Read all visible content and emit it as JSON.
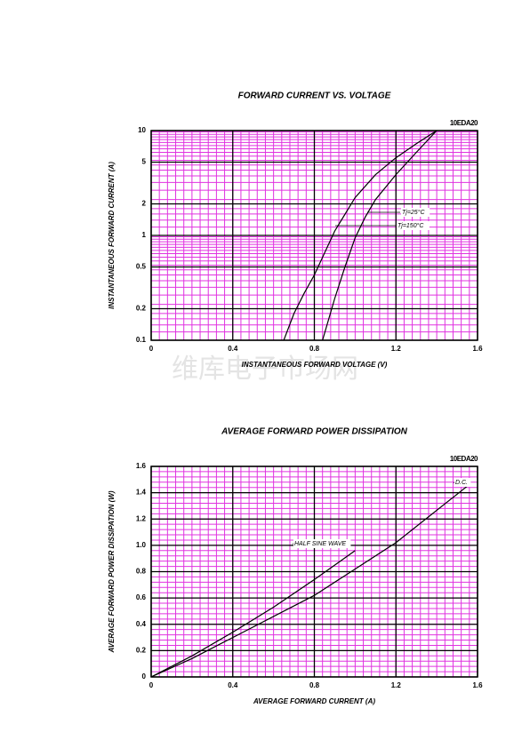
{
  "chart_data": [
    {
      "type": "line",
      "title": "FORWARD CURRENT VS. VOLTAGE",
      "part": "10EDA20",
      "x_label": "INSTANTANEOUS FORWARD VOLTAGE (V)",
      "y_label": "INSTANTANEOUS FORWARD CURRENT (A)",
      "xlim": [
        0,
        1.6
      ],
      "ylim": [
        0.1,
        10
      ],
      "log_y": true,
      "grid": true,
      "grid_color": "#e033e0",
      "xticks": [
        0,
        0.4,
        0.8,
        1.2,
        1.6
      ],
      "yticks": [
        0.1,
        0.2,
        0.5,
        1,
        2,
        5,
        10
      ],
      "series": [
        {
          "name": "Tj=25°C",
          "color": "#000000",
          "x": [
            0.84,
            0.9,
            0.95,
            1.0,
            1.05,
            1.1,
            1.2,
            1.3,
            1.4
          ],
          "values": [
            0.1,
            0.25,
            0.5,
            0.95,
            1.5,
            2.2,
            3.8,
            6.2,
            10
          ]
        },
        {
          "name": "Tj=150°C",
          "color": "#000000",
          "x": [
            0.65,
            0.7,
            0.75,
            0.8,
            0.9,
            1.0,
            1.1,
            1.2,
            1.3,
            1.4
          ],
          "values": [
            0.1,
            0.18,
            0.28,
            0.42,
            1.1,
            2.3,
            3.8,
            5.5,
            7.5,
            10
          ]
        }
      ],
      "watermark": "维库电子市场网"
    },
    {
      "type": "line",
      "title": "AVERAGE FORWARD POWER DISSIPATION",
      "part": "10EDA20",
      "x_label": "AVERAGE FORWARD CURRENT (A)",
      "y_label": "AVERAGE FORWARD POWER DISSIPATION (W)",
      "xlim": [
        0,
        1.6
      ],
      "ylim": [
        0,
        1.6
      ],
      "log_y": false,
      "grid": true,
      "grid_color": "#e033e0",
      "xticks": [
        0,
        0.4,
        0.8,
        {
          "value": 1.2,
          "label": "1.2"
        },
        1.6
      ],
      "yticks": [
        0,
        0.2,
        0.4,
        0.6,
        0.8,
        {
          "value": 1,
          "label": "1.0"
        },
        1.2,
        1.4,
        1.6
      ],
      "series": [
        {
          "name": "HALF SINE WAVE",
          "color": "#000000",
          "x": [
            0,
            0.2,
            0.4,
            0.6,
            0.8,
            1.0
          ],
          "values": [
            0,
            0.16,
            0.34,
            0.53,
            0.74,
            0.96
          ]
        },
        {
          "name": "D.C.",
          "color": "#000000",
          "x": [
            0,
            0.2,
            0.4,
            0.8,
            1.2,
            1.55
          ],
          "values": [
            0,
            0.14,
            0.3,
            0.62,
            1.02,
            1.45
          ]
        }
      ]
    }
  ]
}
